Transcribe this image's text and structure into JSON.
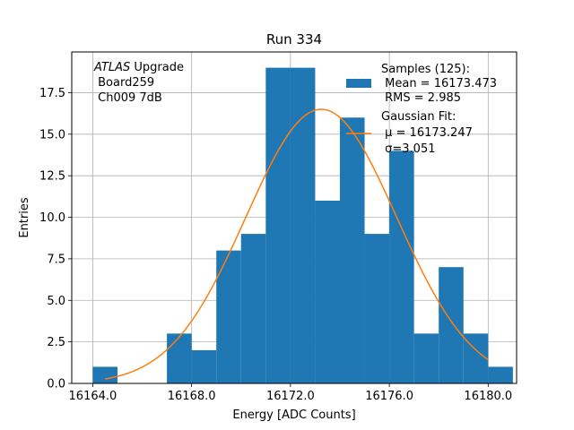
{
  "chart_data": {
    "type": "bar",
    "title": "Run 334",
    "xlabel": "Energy [ADC Counts]",
    "ylabel": "Entries",
    "xlim": [
      16163.15,
      16181.15
    ],
    "ylim": [
      0,
      19.95
    ],
    "grid": true,
    "xticks": [
      16164.0,
      16168.0,
      16172.0,
      16176.0,
      16180.0
    ],
    "xtick_labels": [
      "16164.0",
      "16168.0",
      "16172.0",
      "16176.0",
      "16180.0"
    ],
    "yticks": [
      0.0,
      2.5,
      5.0,
      7.5,
      10.0,
      12.5,
      15.0,
      17.5
    ],
    "ytick_labels": [
      "0.0",
      "2.5",
      "5.0",
      "7.5",
      "10.0",
      "12.5",
      "15.0",
      "17.5"
    ],
    "histogram": {
      "bin_edges": [
        16164.0,
        16165.0,
        16166.0,
        16167.0,
        16168.0,
        16169.0,
        16170.0,
        16171.0,
        16172.0,
        16173.0,
        16174.0,
        16175.0,
        16176.0,
        16177.0,
        16178.0,
        16179.0,
        16180.0,
        16181.0
      ],
      "counts": [
        1,
        0,
        0,
        3,
        2,
        8,
        9,
        19,
        19,
        11,
        16,
        9,
        14,
        3,
        7,
        3,
        1
      ],
      "color": "#1f77b4"
    },
    "fit": {
      "x_range": [
        16164.5,
        16180.0
      ],
      "amplitude": 16.5,
      "mu": 16173.247,
      "sigma": 3.051,
      "color": "#ff7f0e"
    },
    "legend": {
      "placement": "top-right",
      "entries": [
        {
          "lines": [
            "Samples (125):",
            " Mean = 16173.473",
            " RMS = 2.985"
          ],
          "kind": "patch",
          "color": "#1f77b4"
        },
        {
          "lines": [
            "Gaussian Fit:",
            " μ = 16173.247",
            " σ=3.051"
          ],
          "kind": "line",
          "color": "#ff7f0e"
        }
      ]
    },
    "annotation": {
      "italic": "ATLAS",
      "first_line_rest": " Upgrade",
      "lines": [
        " Board259",
        " Ch009 7dB"
      ],
      "placement": "top-left"
    }
  }
}
